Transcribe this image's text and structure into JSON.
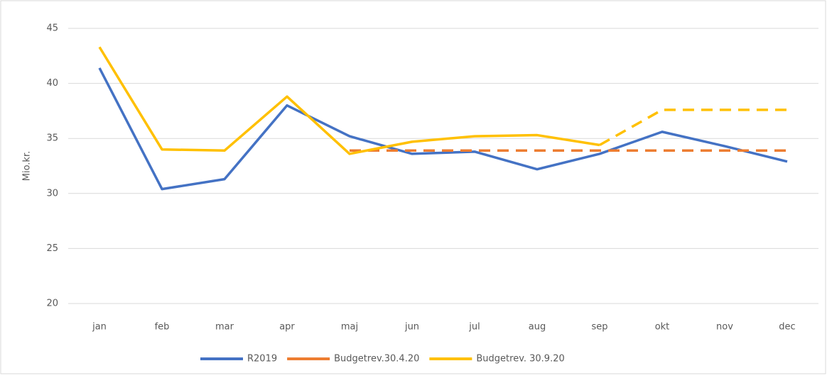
{
  "chart_data": {
    "type": "line",
    "y_label": "Mio.kr.",
    "categories": [
      "jan",
      "feb",
      "mar",
      "apr",
      "maj",
      "jun",
      "jul",
      "aug",
      "sep",
      "okt",
      "nov",
      "dec"
    ],
    "series": [
      {
        "name": "R2019",
        "color": "#4472c4",
        "values": [
          41.4,
          30.4,
          31.3,
          38.0,
          35.2,
          33.6,
          33.8,
          32.2,
          33.6,
          35.6,
          34.3,
          32.9
        ]
      },
      {
        "name": "Budgetrev.30.4.20",
        "color": "#ed7d31",
        "dashed_from": 4,
        "values": [
          null,
          null,
          null,
          null,
          33.9,
          33.9,
          33.9,
          33.9,
          33.9,
          33.9,
          33.9,
          33.9
        ]
      },
      {
        "name": "Budgetrev. 30.9.20",
        "color": "#ffc000",
        "dashed_from": 8,
        "values": [
          43.3,
          34.0,
          33.9,
          38.8,
          33.6,
          34.7,
          35.2,
          35.3,
          34.4,
          37.6,
          37.6,
          37.6
        ]
      }
    ],
    "ylim": [
      20,
      45
    ],
    "yticks": [
      20,
      25,
      30,
      35,
      40,
      45
    ],
    "grid": true
  }
}
